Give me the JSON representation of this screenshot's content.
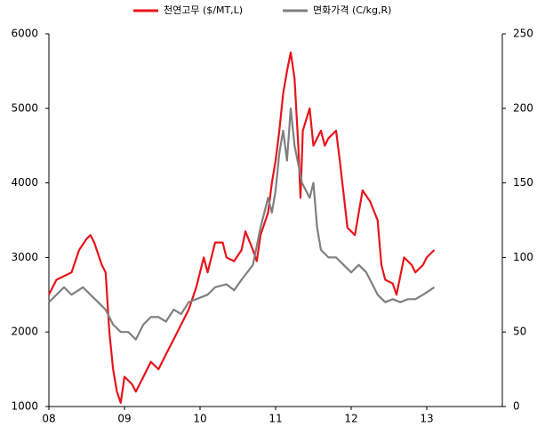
{
  "chart_data": {
    "type": "line",
    "xlim": [
      2008,
      2014
    ],
    "xticks": [
      {
        "value": 2008,
        "label": "08"
      },
      {
        "value": 2009,
        "label": "09"
      },
      {
        "value": 2010,
        "label": "10"
      },
      {
        "value": 2011,
        "label": "11"
      },
      {
        "value": 2012,
        "label": "12"
      },
      {
        "value": 2013,
        "label": "13"
      }
    ],
    "ylim": [
      1000,
      6000
    ],
    "yticks": [
      1000,
      2000,
      3000,
      4000,
      5000,
      6000
    ],
    "y2lim": [
      0,
      250
    ],
    "y2ticks": [
      0,
      50,
      100,
      150,
      200,
      250
    ],
    "legend": "top",
    "series": [
      {
        "name": "천연고무 ($/MT,L)",
        "color": "#e8141b",
        "x": [
          2008.0,
          2008.1,
          2008.2,
          2008.3,
          2008.4,
          2008.5,
          2008.55,
          2008.6,
          2008.7,
          2008.75,
          2008.8,
          2008.85,
          2008.9,
          2008.95,
          2009.0,
          2009.1,
          2009.15,
          2009.25,
          2009.35,
          2009.45,
          2009.55,
          2009.65,
          2009.75,
          2009.85,
          2009.95,
          2010.05,
          2010.1,
          2010.2,
          2010.3,
          2010.35,
          2010.45,
          2010.55,
          2010.6,
          2010.7,
          2010.75,
          2010.8,
          2010.9,
          2010.95,
          2011.0,
          2011.05,
          2011.1,
          2011.15,
          2011.2,
          2011.25,
          2011.3,
          2011.33,
          2011.36,
          2011.45,
          2011.5,
          2011.6,
          2011.65,
          2011.7,
          2011.8,
          2011.85,
          2011.95,
          2012.05,
          2012.15,
          2012.25,
          2012.35,
          2012.4,
          2012.45,
          2012.55,
          2012.6,
          2012.7,
          2012.8,
          2012.85,
          2012.95,
          2013.0,
          2013.1
        ],
        "values": [
          2500,
          2700,
          2750,
          2800,
          3100,
          3250,
          3300,
          3200,
          2900,
          2800,
          2000,
          1500,
          1200,
          1050,
          1400,
          1300,
          1200,
          1400,
          1600,
          1500,
          1700,
          1900,
          2100,
          2300,
          2600,
          3000,
          2800,
          3200,
          3200,
          3000,
          2950,
          3100,
          3350,
          3100,
          2950,
          3300,
          3600,
          4000,
          4300,
          4700,
          5200,
          5500,
          5750,
          5400,
          4500,
          3800,
          4700,
          5000,
          4500,
          4700,
          4500,
          4600,
          4700,
          4300,
          3400,
          3300,
          3900,
          3750,
          3500,
          2900,
          2700,
          2650,
          2500,
          3000,
          2900,
          2800,
          2900,
          3000,
          3100
        ]
      },
      {
        "name": "면화가격 (C/kg,R)",
        "color": "#808080",
        "axis": "y2",
        "x": [
          2008.0,
          2008.1,
          2008.2,
          2008.3,
          2008.45,
          2008.55,
          2008.65,
          2008.75,
          2008.85,
          2008.95,
          2009.05,
          2009.15,
          2009.25,
          2009.35,
          2009.45,
          2009.55,
          2009.65,
          2009.75,
          2009.85,
          2009.95,
          2010.1,
          2010.2,
          2010.35,
          2010.45,
          2010.55,
          2010.7,
          2010.8,
          2010.9,
          2010.95,
          2011.0,
          2011.05,
          2011.1,
          2011.15,
          2011.2,
          2011.25,
          2011.35,
          2011.45,
          2011.5,
          2011.55,
          2011.6,
          2011.7,
          2011.8,
          2011.9,
          2012.0,
          2012.1,
          2012.2,
          2012.3,
          2012.35,
          2012.45,
          2012.55,
          2012.65,
          2012.75,
          2012.85,
          2012.95,
          2013.1
        ],
        "values": [
          70,
          75,
          80,
          75,
          80,
          75,
          70,
          65,
          55,
          50,
          50,
          45,
          55,
          60,
          60,
          57,
          65,
          62,
          70,
          72,
          75,
          80,
          82,
          78,
          85,
          95,
          120,
          140,
          130,
          145,
          170,
          185,
          165,
          200,
          175,
          150,
          140,
          150,
          120,
          105,
          100,
          100,
          95,
          90,
          95,
          90,
          80,
          75,
          70,
          72,
          70,
          72,
          72,
          75,
          80
        ]
      }
    ]
  }
}
